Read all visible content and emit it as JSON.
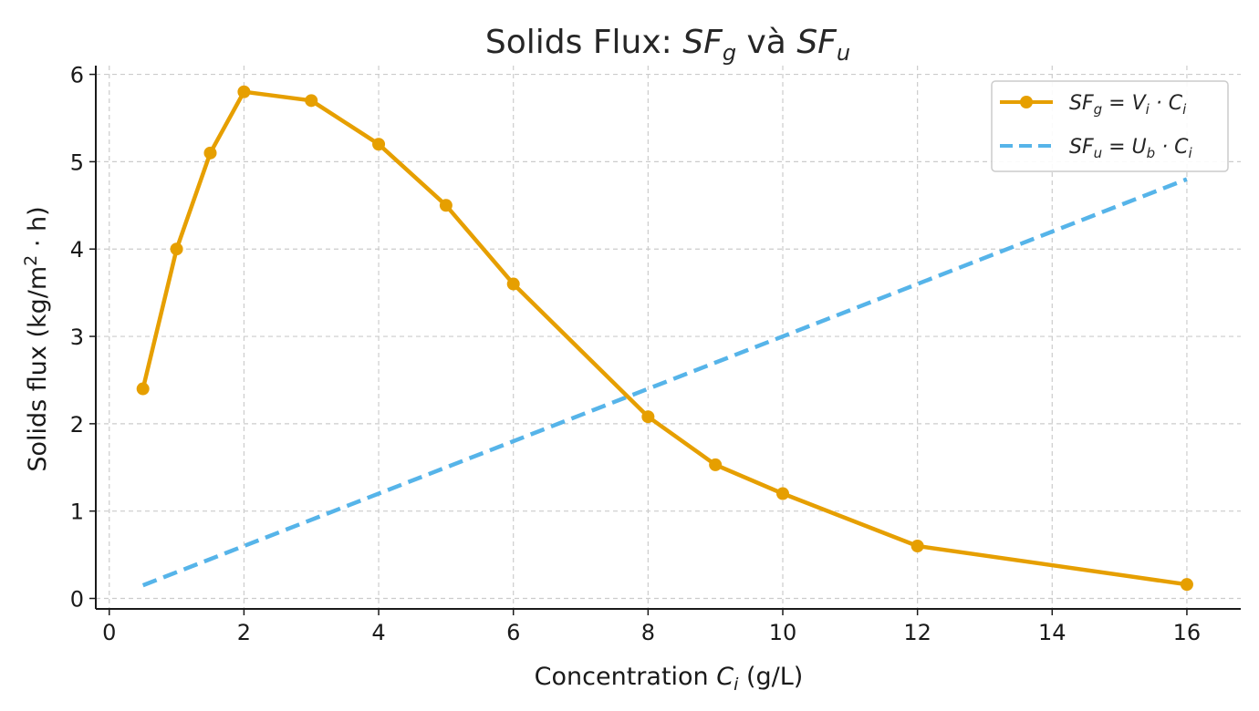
{
  "chart_data": {
    "type": "line",
    "title": {
      "prefix": "Solids Flux: ",
      "first": {
        "base": "SF",
        "sub": "g"
      },
      "joiner": " và ",
      "second": {
        "base": "SF",
        "sub": "u"
      }
    },
    "xlabel": {
      "prefix": "Concentration ",
      "var_base": "C",
      "var_sub": "i",
      "suffix": " (g/L)"
    },
    "ylabel": {
      "prefix": "Solids flux (kg/m",
      "sup": "2",
      "suffix": " · h)"
    },
    "xlim": [
      -0.2,
      16.8
    ],
    "ylim": [
      -0.12,
      6.1
    ],
    "xticks": [
      0,
      2,
      4,
      6,
      8,
      10,
      12,
      14,
      16
    ],
    "yticks": [
      0,
      1,
      2,
      3,
      4,
      5,
      6
    ],
    "grid": true,
    "legend_position": "top-right",
    "series": [
      {
        "name": "SF_g = V_i · C_i",
        "legend": {
          "base": "SF",
          "sub": "g",
          "rest1": " = V",
          "sub2": "i",
          "rest2": " · C",
          "sub3": "i"
        },
        "color": "#E69F00",
        "style": "solid-marker",
        "x": [
          0.5,
          1,
          1.5,
          2,
          3,
          4,
          5,
          6,
          8,
          9,
          10,
          12,
          16
        ],
        "y": [
          2.4,
          4.0,
          5.1,
          5.8,
          5.7,
          5.2,
          4.5,
          3.6,
          2.08,
          1.53,
          1.2,
          0.6,
          0.16
        ]
      },
      {
        "name": "SF_u = U_b · C_i",
        "legend": {
          "base": "SF",
          "sub": "u",
          "rest1": " = U",
          "sub2": "b",
          "rest2": " · C",
          "sub3": "i"
        },
        "color": "#56B4E9",
        "style": "dashed",
        "x": [
          0.5,
          16
        ],
        "y": [
          0.15,
          4.8
        ]
      }
    ]
  }
}
